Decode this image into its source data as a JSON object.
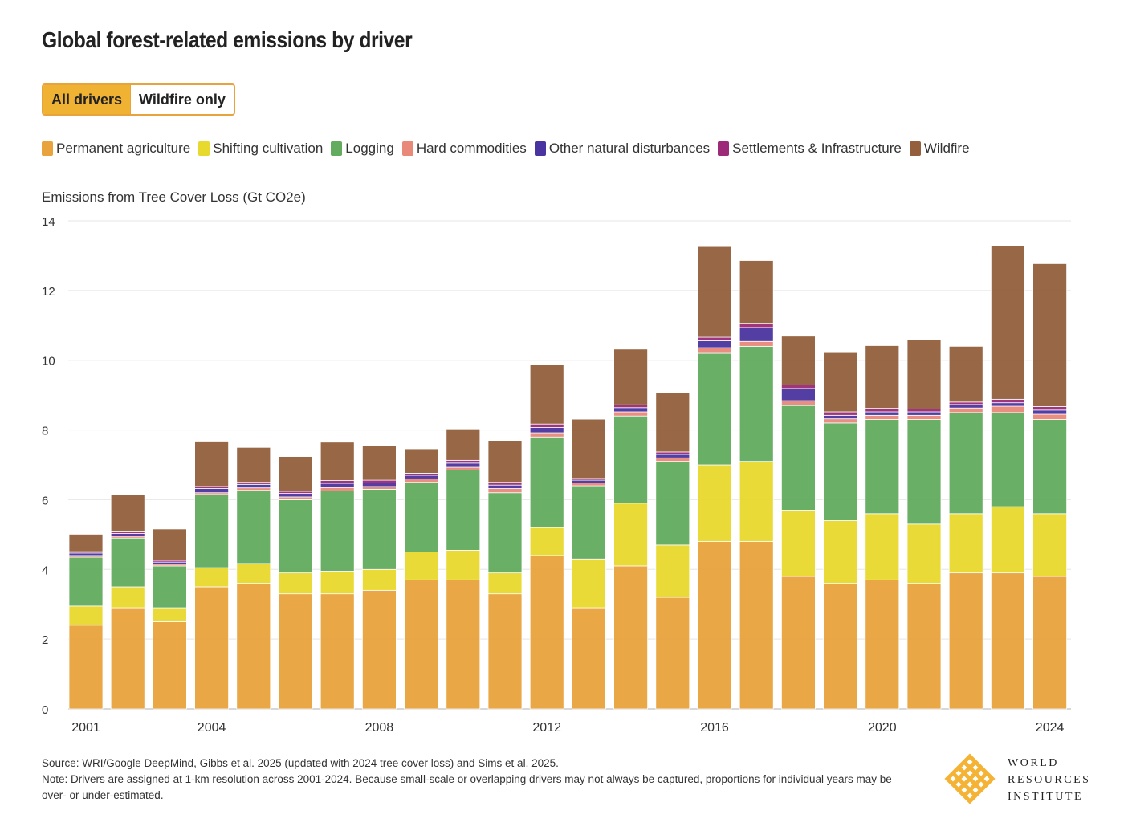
{
  "title": "Global forest-related emissions by driver",
  "toggle": {
    "options": [
      "All drivers",
      "Wildfire only"
    ],
    "selected": "All drivers"
  },
  "colors": {
    "accent": "#e8a33d"
  },
  "chart_data": {
    "type": "bar",
    "stacked": true,
    "ylabel": "Emissions from Tree Cover Loss (Gt CO2e)",
    "ylim": [
      0,
      14
    ],
    "yticks": [
      0,
      2,
      4,
      6,
      8,
      10,
      12,
      14
    ],
    "xticks": [
      "2001",
      "2004",
      "2008",
      "2012",
      "2016",
      "2020",
      "2024"
    ],
    "grid": true,
    "legend_placement": "top",
    "categories": [
      "2001",
      "2002",
      "2003",
      "2004",
      "2005",
      "2006",
      "2007",
      "2008",
      "2009",
      "2010",
      "2011",
      "2012",
      "2013",
      "2014",
      "2015",
      "2016",
      "2017",
      "2018",
      "2019",
      "2020",
      "2021",
      "2022",
      "2023",
      "2024"
    ],
    "series": [
      {
        "name": "Permanent agriculture",
        "color": "#e8a33d",
        "values": [
          2.4,
          2.9,
          2.5,
          3.5,
          3.6,
          3.3,
          3.3,
          3.4,
          3.7,
          3.7,
          3.3,
          4.4,
          2.9,
          4.1,
          3.2,
          4.8,
          4.8,
          3.8,
          3.6,
          3.7,
          3.6,
          3.9,
          3.9,
          3.8
        ]
      },
      {
        "name": "Shifting cultivation",
        "color": "#e8d92e",
        "values": [
          0.55,
          0.6,
          0.4,
          0.55,
          0.57,
          0.6,
          0.65,
          0.6,
          0.8,
          0.85,
          0.6,
          0.8,
          1.4,
          1.8,
          1.5,
          2.2,
          2.3,
          1.9,
          1.8,
          1.9,
          1.7,
          1.7,
          1.9,
          1.8
        ]
      },
      {
        "name": "Logging",
        "color": "#63ab5e",
        "values": [
          1.4,
          1.4,
          1.2,
          2.1,
          2.1,
          2.1,
          2.3,
          2.3,
          2.0,
          2.3,
          2.3,
          2.6,
          2.1,
          2.5,
          2.4,
          3.2,
          3.3,
          3.0,
          2.8,
          2.7,
          3.0,
          2.9,
          2.7,
          2.7
        ]
      },
      {
        "name": "Hard commodities",
        "color": "#e8897a",
        "values": [
          0.05,
          0.05,
          0.05,
          0.05,
          0.07,
          0.08,
          0.1,
          0.08,
          0.1,
          0.08,
          0.12,
          0.12,
          0.08,
          0.12,
          0.1,
          0.16,
          0.14,
          0.14,
          0.12,
          0.12,
          0.12,
          0.13,
          0.18,
          0.15
        ]
      },
      {
        "name": "Other natural disturbances",
        "color": "#4a35a0",
        "values": [
          0.07,
          0.08,
          0.06,
          0.12,
          0.1,
          0.1,
          0.12,
          0.1,
          0.1,
          0.12,
          0.1,
          0.15,
          0.08,
          0.12,
          0.1,
          0.2,
          0.4,
          0.35,
          0.1,
          0.1,
          0.1,
          0.1,
          0.1,
          0.12
        ]
      },
      {
        "name": "Settlements & Infrastructure",
        "color": "#9c2a78",
        "values": [
          0.04,
          0.07,
          0.05,
          0.06,
          0.06,
          0.06,
          0.08,
          0.08,
          0.06,
          0.08,
          0.08,
          0.1,
          0.05,
          0.08,
          0.07,
          0.1,
          0.12,
          0.1,
          0.1,
          0.1,
          0.08,
          0.07,
          0.1,
          0.1
        ]
      },
      {
        "name": "Wildfire",
        "color": "#935f3c",
        "values": [
          0.5,
          1.05,
          0.9,
          1.3,
          1.0,
          1.0,
          1.1,
          1.0,
          0.7,
          0.9,
          1.2,
          1.7,
          1.7,
          1.6,
          1.7,
          2.6,
          1.8,
          1.4,
          1.7,
          1.8,
          2.0,
          1.6,
          4.4,
          4.1
        ]
      }
    ]
  },
  "notes": {
    "source": "Source: WRI/Google DeepMind, Gibbs et al. 2025 (updated with 2024 tree cover loss) and Sims et al. 2025.",
    "note": "Note: Drivers are assigned at 1-km resolution across 2001-2024. Because small-scale or overlapping drivers may not always be captured, proportions for individual years may be over- or under-estimated."
  },
  "logo": {
    "lines": [
      "WORLD",
      "RESOURCES",
      "INSTITUTE"
    ],
    "icon": "wri-knot-logo"
  }
}
